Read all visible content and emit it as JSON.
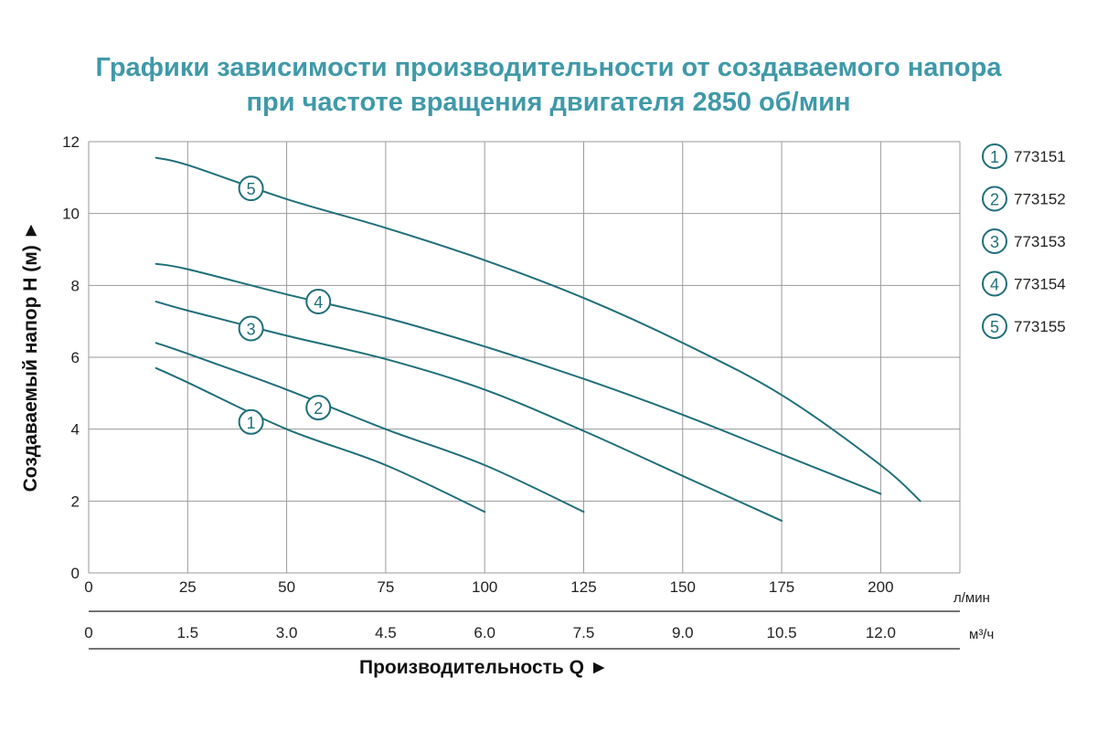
{
  "chart_data": {
    "type": "line",
    "title_lines": [
      "Графики зависимости производительности от создаваемого напора",
      "при частоте вращения двигателя 2850 об/мин"
    ],
    "ylabel": "Создаваемый напор Н (м) ►",
    "xlabel": "Производительность Q ►",
    "x_unit_primary": "л/мин",
    "x_unit_secondary": "м³/ч",
    "xlim": [
      0,
      220
    ],
    "ylim": [
      0,
      12
    ],
    "x_ticks": [
      "0",
      "25",
      "50",
      "75",
      "100",
      "125",
      "150",
      "175",
      "200"
    ],
    "x_tick_values": [
      0,
      25,
      50,
      75,
      100,
      125,
      150,
      175,
      200
    ],
    "x_secondary_ticks": [
      "0",
      "1.5",
      "3.0",
      "4.5",
      "6.0",
      "7.5",
      "9.0",
      "10.5",
      "12.0"
    ],
    "y_ticks": [
      "0",
      "2",
      "4",
      "6",
      "8",
      "10",
      "12"
    ],
    "y_tick_values": [
      0,
      2,
      4,
      6,
      8,
      10,
      12
    ],
    "grid": true,
    "legend_position": "right",
    "line_color": "#1f6f7a",
    "title_color": "#3f99a8",
    "series": [
      {
        "id": "1",
        "name": "773151",
        "label_at": [
          41,
          4.2
        ],
        "x": [
          17,
          25,
          50,
          75,
          100
        ],
        "y": [
          5.7,
          5.3,
          4.0,
          3.0,
          1.7
        ]
      },
      {
        "id": "2",
        "name": "773152",
        "label_at": [
          58,
          4.6
        ],
        "x": [
          17,
          25,
          50,
          75,
          100,
          125
        ],
        "y": [
          6.4,
          6.1,
          5.1,
          4.0,
          3.0,
          1.7
        ]
      },
      {
        "id": "3",
        "name": "773153",
        "label_at": [
          41,
          6.8
        ],
        "x": [
          17,
          25,
          50,
          75,
          100,
          125,
          150,
          175
        ],
        "y": [
          7.55,
          7.3,
          6.6,
          5.95,
          5.1,
          3.95,
          2.7,
          1.45
        ]
      },
      {
        "id": "4",
        "name": "773154",
        "label_at": [
          58,
          7.55
        ],
        "x": [
          17,
          25,
          50,
          75,
          100,
          125,
          150,
          175,
          200
        ],
        "y": [
          8.6,
          8.45,
          7.75,
          7.1,
          6.3,
          5.4,
          4.4,
          3.3,
          2.2
        ]
      },
      {
        "id": "5",
        "name": "773155",
        "label_at": [
          41,
          10.7
        ],
        "x": [
          17,
          25,
          50,
          75,
          100,
          125,
          150,
          175,
          200,
          210
        ],
        "y": [
          11.55,
          11.35,
          10.4,
          9.6,
          8.7,
          7.65,
          6.4,
          4.95,
          3.0,
          2.0
        ]
      }
    ]
  }
}
